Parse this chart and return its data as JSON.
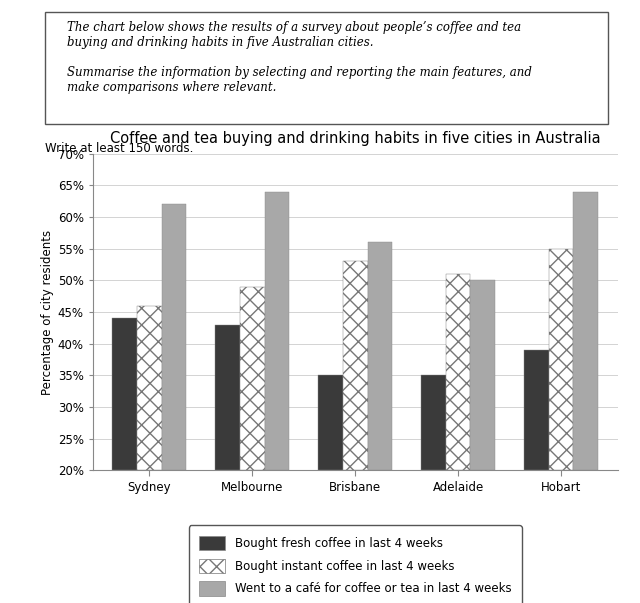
{
  "title": "Coffee and tea buying and drinking habits in five cities in Australia",
  "instruction_text": "The chart below shows the results of a survey about people’s coffee and tea\nbuying and drinking habits in five Australian cities.\n\nSummarise the information by selecting and reporting the main features, and\nmake comparisons where relevant.",
  "subtext": "Write at least 150 words.",
  "cities": [
    "Sydney",
    "Melbourne",
    "Brisbane",
    "Adelaide",
    "Hobart"
  ],
  "series": {
    "fresh_coffee": [
      44,
      43,
      35,
      35,
      39
    ],
    "instant_coffee": [
      46,
      49,
      53,
      51,
      55
    ],
    "cafe": [
      62,
      64,
      56,
      50,
      64
    ]
  },
  "ylabel": "Percentage of city residents",
  "ylim": [
    20,
    70
  ],
  "yticks": [
    20,
    25,
    30,
    35,
    40,
    45,
    50,
    55,
    60,
    65,
    70
  ],
  "bar_colors": {
    "fresh_coffee": "#3a3a3a",
    "instant_coffee": "#ffffff",
    "cafe": "#a8a8a8"
  },
  "legend_labels": [
    "Bought fresh coffee in last 4 weeks",
    "Bought instant coffee in last 4 weeks",
    "Went to a café for coffee or tea in last 4 weeks"
  ],
  "fig_bg_color": "#ffffff",
  "plot_bg_color": "#ffffff",
  "title_fontsize": 10.5,
  "axis_fontsize": 8.5,
  "tick_fontsize": 8.5,
  "legend_fontsize": 8.5
}
